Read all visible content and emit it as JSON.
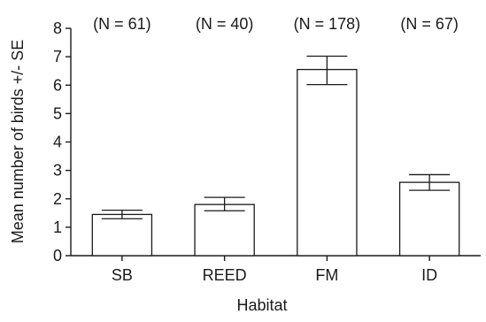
{
  "chart_data": {
    "type": "bar",
    "categories": [
      "SB",
      "REED",
      "FM",
      "ID"
    ],
    "values": [
      1.45,
      1.8,
      6.55,
      2.58
    ],
    "errors": [
      {
        "low": 1.3,
        "high": 1.6
      },
      {
        "low": 1.58,
        "high": 2.05
      },
      {
        "low": 6.02,
        "high": 7.02
      },
      {
        "low": 2.3,
        "high": 2.85
      }
    ],
    "annotations": [
      "(N = 61)",
      "(N = 40)",
      "(N = 178)",
      "(N = 67)"
    ],
    "xlabel": "Habitat",
    "ylabel": "Mean number of birds +/- SE",
    "ylim": [
      0,
      8
    ],
    "yticks": [
      "0",
      "1",
      "2",
      "3",
      "4",
      "5",
      "6",
      "7",
      "8"
    ],
    "grid": false,
    "bar_fill": "#ffffff",
    "stroke_color": "#1a1a1a"
  }
}
